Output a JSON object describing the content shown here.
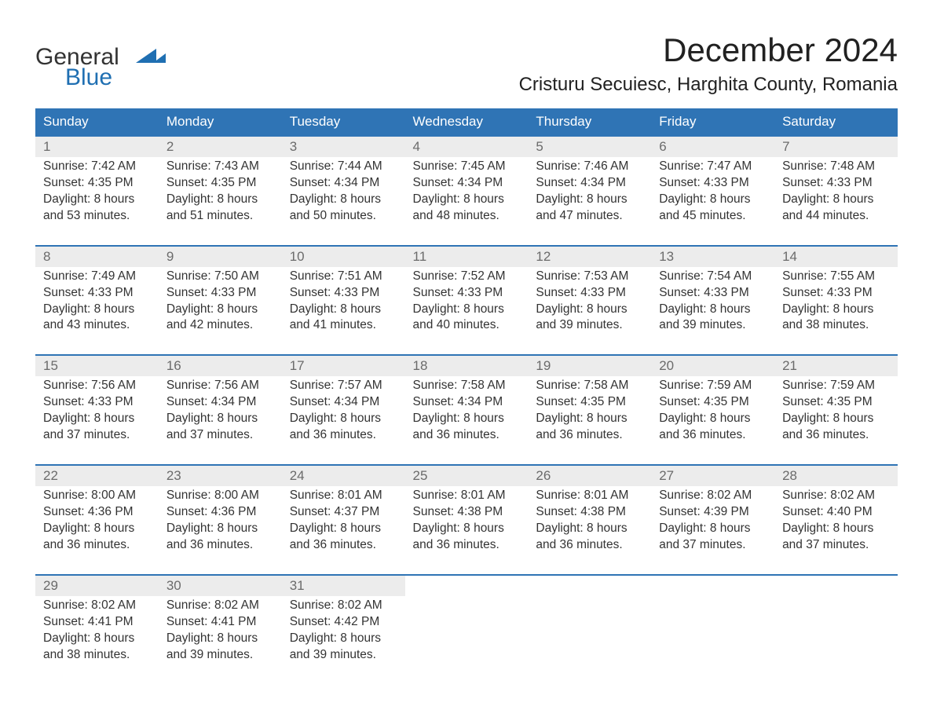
{
  "logo": {
    "line1": "General",
    "line2": "Blue"
  },
  "title": "December 2024",
  "location": "Cristuru Secuiesc, Harghita County, Romania",
  "colors": {
    "header_bg": "#2f74b5",
    "header_text": "#ffffff",
    "daynum_bg": "#ececec",
    "daynum_text": "#6b6b6b",
    "body_text": "#333333",
    "rule": "#2f74b5",
    "logo_blue": "#1f6fb2",
    "background": "#ffffff"
  },
  "weekdays": [
    "Sunday",
    "Monday",
    "Tuesday",
    "Wednesday",
    "Thursday",
    "Friday",
    "Saturday"
  ],
  "weeks": [
    [
      {
        "num": "1",
        "sunrise": "Sunrise: 7:42 AM",
        "sunset": "Sunset: 4:35 PM",
        "day1": "Daylight: 8 hours",
        "day2": "and 53 minutes."
      },
      {
        "num": "2",
        "sunrise": "Sunrise: 7:43 AM",
        "sunset": "Sunset: 4:35 PM",
        "day1": "Daylight: 8 hours",
        "day2": "and 51 minutes."
      },
      {
        "num": "3",
        "sunrise": "Sunrise: 7:44 AM",
        "sunset": "Sunset: 4:34 PM",
        "day1": "Daylight: 8 hours",
        "day2": "and 50 minutes."
      },
      {
        "num": "4",
        "sunrise": "Sunrise: 7:45 AM",
        "sunset": "Sunset: 4:34 PM",
        "day1": "Daylight: 8 hours",
        "day2": "and 48 minutes."
      },
      {
        "num": "5",
        "sunrise": "Sunrise: 7:46 AM",
        "sunset": "Sunset: 4:34 PM",
        "day1": "Daylight: 8 hours",
        "day2": "and 47 minutes."
      },
      {
        "num": "6",
        "sunrise": "Sunrise: 7:47 AM",
        "sunset": "Sunset: 4:33 PM",
        "day1": "Daylight: 8 hours",
        "day2": "and 45 minutes."
      },
      {
        "num": "7",
        "sunrise": "Sunrise: 7:48 AM",
        "sunset": "Sunset: 4:33 PM",
        "day1": "Daylight: 8 hours",
        "day2": "and 44 minutes."
      }
    ],
    [
      {
        "num": "8",
        "sunrise": "Sunrise: 7:49 AM",
        "sunset": "Sunset: 4:33 PM",
        "day1": "Daylight: 8 hours",
        "day2": "and 43 minutes."
      },
      {
        "num": "9",
        "sunrise": "Sunrise: 7:50 AM",
        "sunset": "Sunset: 4:33 PM",
        "day1": "Daylight: 8 hours",
        "day2": "and 42 minutes."
      },
      {
        "num": "10",
        "sunrise": "Sunrise: 7:51 AM",
        "sunset": "Sunset: 4:33 PM",
        "day1": "Daylight: 8 hours",
        "day2": "and 41 minutes."
      },
      {
        "num": "11",
        "sunrise": "Sunrise: 7:52 AM",
        "sunset": "Sunset: 4:33 PM",
        "day1": "Daylight: 8 hours",
        "day2": "and 40 minutes."
      },
      {
        "num": "12",
        "sunrise": "Sunrise: 7:53 AM",
        "sunset": "Sunset: 4:33 PM",
        "day1": "Daylight: 8 hours",
        "day2": "and 39 minutes."
      },
      {
        "num": "13",
        "sunrise": "Sunrise: 7:54 AM",
        "sunset": "Sunset: 4:33 PM",
        "day1": "Daylight: 8 hours",
        "day2": "and 39 minutes."
      },
      {
        "num": "14",
        "sunrise": "Sunrise: 7:55 AM",
        "sunset": "Sunset: 4:33 PM",
        "day1": "Daylight: 8 hours",
        "day2": "and 38 minutes."
      }
    ],
    [
      {
        "num": "15",
        "sunrise": "Sunrise: 7:56 AM",
        "sunset": "Sunset: 4:33 PM",
        "day1": "Daylight: 8 hours",
        "day2": "and 37 minutes."
      },
      {
        "num": "16",
        "sunrise": "Sunrise: 7:56 AM",
        "sunset": "Sunset: 4:34 PM",
        "day1": "Daylight: 8 hours",
        "day2": "and 37 minutes."
      },
      {
        "num": "17",
        "sunrise": "Sunrise: 7:57 AM",
        "sunset": "Sunset: 4:34 PM",
        "day1": "Daylight: 8 hours",
        "day2": "and 36 minutes."
      },
      {
        "num": "18",
        "sunrise": "Sunrise: 7:58 AM",
        "sunset": "Sunset: 4:34 PM",
        "day1": "Daylight: 8 hours",
        "day2": "and 36 minutes."
      },
      {
        "num": "19",
        "sunrise": "Sunrise: 7:58 AM",
        "sunset": "Sunset: 4:35 PM",
        "day1": "Daylight: 8 hours",
        "day2": "and 36 minutes."
      },
      {
        "num": "20",
        "sunrise": "Sunrise: 7:59 AM",
        "sunset": "Sunset: 4:35 PM",
        "day1": "Daylight: 8 hours",
        "day2": "and 36 minutes."
      },
      {
        "num": "21",
        "sunrise": "Sunrise: 7:59 AM",
        "sunset": "Sunset: 4:35 PM",
        "day1": "Daylight: 8 hours",
        "day2": "and 36 minutes."
      }
    ],
    [
      {
        "num": "22",
        "sunrise": "Sunrise: 8:00 AM",
        "sunset": "Sunset: 4:36 PM",
        "day1": "Daylight: 8 hours",
        "day2": "and 36 minutes."
      },
      {
        "num": "23",
        "sunrise": "Sunrise: 8:00 AM",
        "sunset": "Sunset: 4:36 PM",
        "day1": "Daylight: 8 hours",
        "day2": "and 36 minutes."
      },
      {
        "num": "24",
        "sunrise": "Sunrise: 8:01 AM",
        "sunset": "Sunset: 4:37 PM",
        "day1": "Daylight: 8 hours",
        "day2": "and 36 minutes."
      },
      {
        "num": "25",
        "sunrise": "Sunrise: 8:01 AM",
        "sunset": "Sunset: 4:38 PM",
        "day1": "Daylight: 8 hours",
        "day2": "and 36 minutes."
      },
      {
        "num": "26",
        "sunrise": "Sunrise: 8:01 AM",
        "sunset": "Sunset: 4:38 PM",
        "day1": "Daylight: 8 hours",
        "day2": "and 36 minutes."
      },
      {
        "num": "27",
        "sunrise": "Sunrise: 8:02 AM",
        "sunset": "Sunset: 4:39 PM",
        "day1": "Daylight: 8 hours",
        "day2": "and 37 minutes."
      },
      {
        "num": "28",
        "sunrise": "Sunrise: 8:02 AM",
        "sunset": "Sunset: 4:40 PM",
        "day1": "Daylight: 8 hours",
        "day2": "and 37 minutes."
      }
    ],
    [
      {
        "num": "29",
        "sunrise": "Sunrise: 8:02 AM",
        "sunset": "Sunset: 4:41 PM",
        "day1": "Daylight: 8 hours",
        "day2": "and 38 minutes."
      },
      {
        "num": "30",
        "sunrise": "Sunrise: 8:02 AM",
        "sunset": "Sunset: 4:41 PM",
        "day1": "Daylight: 8 hours",
        "day2": "and 39 minutes."
      },
      {
        "num": "31",
        "sunrise": "Sunrise: 8:02 AM",
        "sunset": "Sunset: 4:42 PM",
        "day1": "Daylight: 8 hours",
        "day2": "and 39 minutes."
      },
      null,
      null,
      null,
      null
    ]
  ]
}
